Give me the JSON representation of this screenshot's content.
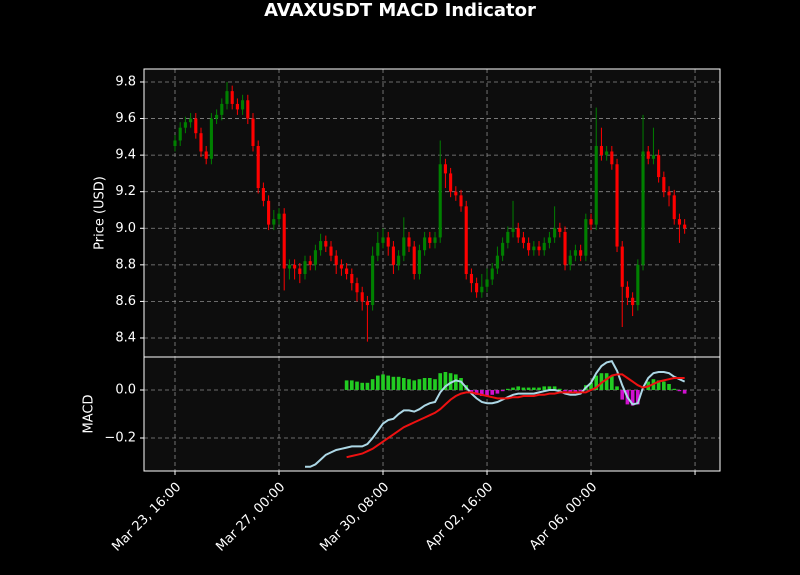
{
  "chart_data": [
    {
      "type": "candlestick",
      "title": "AVAXUSDT MACD Indicator",
      "ylabel": "Price (USD)",
      "up_color": "#008000",
      "down_color": "#ff0000",
      "grid": true,
      "ylim": [
        8.296,
        9.871
      ],
      "yticks": [
        8.4,
        8.6,
        8.8,
        {
          "value": 9,
          "label": "9.0"
        },
        9.2,
        9.4,
        9.6,
        9.8
      ],
      "open": [
        9.45,
        9.48,
        9.55,
        9.58,
        9.6,
        9.52,
        9.42,
        9.38,
        9.6,
        9.62,
        9.68,
        9.75,
        9.68,
        9.65,
        9.7,
        9.6,
        9.45,
        9.22,
        9.15,
        9.02,
        9.05,
        9.08,
        8.78,
        8.8,
        8.78,
        8.75,
        8.82,
        8.8,
        8.88,
        8.93,
        8.9,
        8.85,
        8.8,
        8.78,
        8.75,
        8.7,
        8.65,
        8.6,
        8.58,
        8.85,
        8.92,
        8.95,
        8.9,
        8.8,
        8.85,
        8.95,
        8.9,
        8.75,
        8.88,
        8.95,
        8.92,
        8.95,
        9.35,
        9.3,
        9.2,
        9.18,
        9.12,
        8.75,
        8.7,
        8.65,
        8.68,
        8.72,
        8.78,
        8.85,
        8.92,
        8.98,
        9.0,
        8.95,
        8.92,
        8.88,
        8.9,
        8.88,
        8.92,
        8.95,
        9.0,
        8.98,
        8.8,
        8.85,
        8.88,
        8.85,
        9.05,
        9.02,
        9.45,
        9.4,
        9.42,
        9.35,
        8.9,
        8.68,
        8.62,
        8.58,
        8.8,
        9.42,
        9.38,
        9.4,
        9.28,
        9.2,
        9.18,
        9.05,
        9.02
      ],
      "high": [
        9.51,
        9.58,
        9.61,
        9.63,
        9.63,
        9.55,
        9.45,
        9.63,
        9.65,
        9.71,
        9.8,
        9.78,
        9.71,
        9.73,
        9.73,
        9.63,
        9.48,
        9.25,
        9.18,
        9.1,
        9.11,
        9.11,
        8.83,
        8.83,
        8.81,
        8.85,
        8.85,
        8.91,
        8.97,
        8.96,
        8.93,
        8.88,
        8.83,
        8.81,
        8.78,
        8.73,
        8.68,
        8.63,
        8.9,
        8.98,
        9.0,
        8.98,
        8.93,
        8.88,
        9.06,
        8.98,
        8.93,
        8.91,
        8.98,
        8.98,
        8.98,
        9.48,
        9.38,
        9.33,
        9.23,
        9.21,
        9.15,
        8.78,
        8.73,
        8.75,
        8.78,
        8.81,
        8.9,
        8.95,
        9.01,
        9.15,
        9.03,
        8.98,
        8.95,
        8.93,
        8.93,
        8.95,
        8.98,
        9.12,
        9.03,
        9.01,
        8.88,
        8.91,
        8.91,
        9.08,
        9.08,
        9.66,
        9.55,
        9.45,
        9.45,
        9.38,
        8.93,
        8.71,
        8.65,
        8.83,
        9.62,
        9.45,
        9.55,
        9.43,
        9.31,
        9.23,
        9.21,
        9.08,
        9.05
      ],
      "low": [
        9.42,
        9.45,
        9.52,
        9.55,
        9.49,
        9.39,
        9.35,
        9.35,
        9.57,
        9.59,
        9.65,
        9.65,
        9.62,
        9.62,
        9.57,
        9.42,
        9.19,
        9.12,
        8.99,
        8.99,
        9.02,
        8.66,
        8.72,
        8.72,
        8.7,
        8.72,
        8.77,
        8.77,
        8.85,
        8.87,
        8.82,
        8.75,
        8.74,
        8.72,
        8.66,
        8.6,
        8.55,
        8.38,
        8.55,
        8.82,
        8.89,
        8.85,
        8.75,
        8.77,
        8.82,
        8.87,
        8.72,
        8.72,
        8.85,
        8.89,
        8.89,
        8.92,
        9.22,
        9.17,
        9.15,
        9.09,
        8.72,
        8.65,
        8.62,
        8.62,
        8.65,
        8.69,
        8.75,
        8.82,
        8.89,
        8.95,
        8.92,
        8.89,
        8.85,
        8.85,
        8.85,
        8.85,
        8.89,
        8.92,
        8.95,
        8.77,
        8.77,
        8.82,
        8.82,
        8.82,
        8.99,
        8.99,
        9.37,
        9.37,
        9.32,
        8.87,
        8.46,
        8.58,
        8.52,
        8.55,
        8.77,
        9.35,
        9.35,
        9.25,
        9.17,
        9.12,
        9.02,
        8.92,
        8.97
      ],
      "close": [
        9.48,
        9.55,
        9.58,
        9.6,
        9.52,
        9.42,
        9.38,
        9.6,
        9.62,
        9.68,
        9.75,
        9.68,
        9.65,
        9.7,
        9.6,
        9.45,
        9.22,
        9.15,
        9.02,
        9.05,
        9.08,
        8.78,
        8.8,
        8.78,
        8.75,
        8.82,
        8.8,
        8.88,
        8.93,
        8.9,
        8.85,
        8.8,
        8.78,
        8.75,
        8.7,
        8.65,
        8.6,
        8.58,
        8.85,
        8.92,
        8.95,
        8.9,
        8.8,
        8.85,
        8.95,
        8.9,
        8.75,
        8.88,
        8.95,
        8.92,
        8.95,
        9.35,
        9.3,
        9.2,
        9.18,
        9.12,
        8.75,
        8.7,
        8.65,
        8.68,
        8.72,
        8.78,
        8.85,
        8.92,
        8.98,
        9.0,
        8.95,
        8.92,
        8.88,
        8.9,
        8.88,
        8.92,
        8.95,
        9.0,
        8.98,
        8.8,
        8.85,
        8.88,
        8.85,
        9.05,
        9.02,
        9.45,
        9.4,
        9.42,
        9.35,
        8.9,
        8.68,
        8.62,
        8.58,
        8.8,
        9.42,
        9.38,
        9.4,
        9.28,
        9.2,
        9.18,
        9.05,
        9.02,
        9.0
      ]
    },
    {
      "type": "macd",
      "ylabel": "MACD",
      "grid": true,
      "ylim": [
        -0.3375,
        0.1375
      ],
      "yticks": [
        {
          "value": -0.2,
          "label": "−0.2"
        },
        {
          "value": 0,
          "label": "0.0"
        }
      ],
      "xlim": [
        -5.96,
        104.8
      ],
      "xticks": [
        {
          "value": 0,
          "label": "Mar 23, 16:00"
        },
        {
          "value": 20,
          "label": "Mar 27, 00:00"
        },
        {
          "value": 40,
          "label": "Mar 30, 08:00"
        },
        {
          "value": 60,
          "label": "Apr 02, 16:00"
        },
        {
          "value": 80,
          "label": "Apr 06, 00:00"
        },
        {
          "value": 100,
          "label": null
        }
      ],
      "series": [
        {
          "kind": "bar",
          "color": "#22cc22",
          "negative_color": "#d010d0",
          "values": [
            null,
            null,
            null,
            null,
            null,
            null,
            null,
            null,
            null,
            null,
            null,
            null,
            null,
            null,
            null,
            null,
            null,
            null,
            null,
            null,
            null,
            null,
            null,
            null,
            null,
            null,
            null,
            null,
            null,
            null,
            null,
            null,
            null,
            0.04,
            0.04,
            0.035,
            0.03,
            0.03,
            0.045,
            0.06,
            0.065,
            0.06,
            0.055,
            0.055,
            0.05,
            0.045,
            0.04,
            0.045,
            0.05,
            0.05,
            0.045,
            0.07,
            0.075,
            0.07,
            0.065,
            0.05,
            0.02,
            -0.01,
            -0.02,
            -0.025,
            -0.025,
            -0.02,
            -0.015,
            -0.005,
            0.005,
            0.01,
            0.015,
            0.01,
            0.01,
            0.01,
            0.01,
            0.015,
            0.015,
            0.015,
            0.005,
            -0.005,
            -0.01,
            -0.01,
            -0.005,
            0.02,
            0.03,
            0.06,
            0.07,
            0.07,
            0.06,
            0.015,
            -0.04,
            -0.06,
            -0.065,
            -0.06,
            0.0,
            0.035,
            0.045,
            0.04,
            0.035,
            0.025,
            0.005,
            -0.005,
            -0.015
          ]
        },
        {
          "kind": "line",
          "color": "#add8e6",
          "values": [
            null,
            null,
            null,
            null,
            null,
            null,
            null,
            null,
            null,
            null,
            null,
            null,
            null,
            null,
            null,
            null,
            null,
            null,
            null,
            null,
            null,
            null,
            null,
            null,
            null,
            -0.32,
            -0.32,
            -0.31,
            -0.29,
            -0.27,
            -0.26,
            -0.25,
            -0.245,
            -0.24,
            -0.235,
            -0.235,
            -0.235,
            -0.225,
            -0.2,
            -0.17,
            -0.14,
            -0.125,
            -0.12,
            -0.1,
            -0.085,
            -0.085,
            -0.09,
            -0.08,
            -0.065,
            -0.055,
            -0.05,
            -0.01,
            0.015,
            0.03,
            0.04,
            0.035,
            0.01,
            -0.015,
            -0.035,
            -0.05,
            -0.055,
            -0.055,
            -0.05,
            -0.04,
            -0.03,
            -0.02,
            -0.015,
            -0.015,
            -0.015,
            -0.015,
            -0.01,
            -0.005,
            0.0,
            0.0,
            -0.005,
            -0.015,
            -0.02,
            -0.02,
            -0.015,
            0.01,
            0.03,
            0.07,
            0.1,
            0.115,
            0.12,
            0.08,
            0.02,
            -0.03,
            -0.06,
            -0.055,
            0.01,
            0.05,
            0.07,
            0.075,
            0.075,
            0.07,
            0.055,
            0.045,
            0.035
          ]
        },
        {
          "kind": "line",
          "color": "#ee1111",
          "values": [
            null,
            null,
            null,
            null,
            null,
            null,
            null,
            null,
            null,
            null,
            null,
            null,
            null,
            null,
            null,
            null,
            null,
            null,
            null,
            null,
            null,
            null,
            null,
            null,
            null,
            null,
            null,
            null,
            null,
            null,
            null,
            null,
            null,
            -0.28,
            -0.275,
            -0.27,
            -0.265,
            -0.255,
            -0.245,
            -0.23,
            -0.215,
            -0.2,
            -0.185,
            -0.17,
            -0.155,
            -0.145,
            -0.135,
            -0.125,
            -0.115,
            -0.105,
            -0.095,
            -0.08,
            -0.06,
            -0.04,
            -0.025,
            -0.015,
            -0.01,
            -0.01,
            -0.015,
            -0.02,
            -0.025,
            -0.03,
            -0.035,
            -0.035,
            -0.035,
            -0.03,
            -0.03,
            -0.025,
            -0.025,
            -0.025,
            -0.02,
            -0.02,
            -0.015,
            -0.015,
            -0.01,
            -0.01,
            -0.01,
            -0.01,
            -0.01,
            -0.01,
            0.0,
            0.01,
            0.03,
            0.045,
            0.06,
            0.065,
            0.065,
            0.05,
            0.035,
            0.02,
            0.01,
            0.015,
            0.025,
            0.035,
            0.04,
            0.045,
            0.05,
            0.05,
            0.05
          ]
        }
      ]
    }
  ]
}
